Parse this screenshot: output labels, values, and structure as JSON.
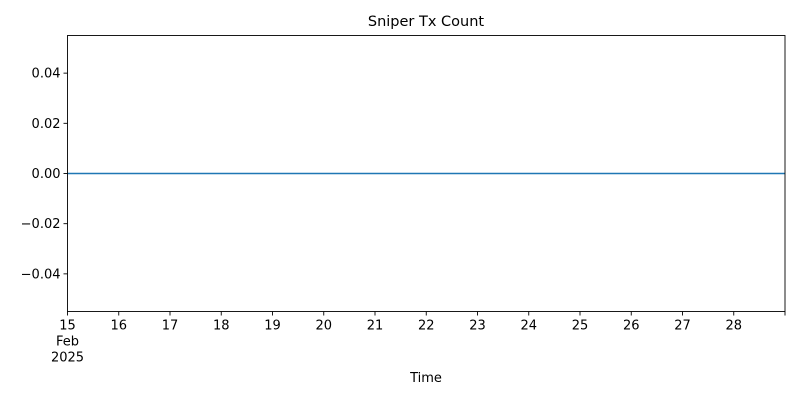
{
  "chart_data": {
    "type": "line",
    "title": "Sniper Tx Count",
    "xlabel": "Time",
    "ylabel": "",
    "x_axis": {
      "scale": "date",
      "range": [
        "2025-02-15",
        "2025-03-01"
      ],
      "major_ticks": [
        {
          "date": "2025-02-15",
          "label": "15",
          "sublabels": [
            "Feb",
            "2025"
          ]
        },
        {
          "date": "2025-02-16",
          "label": "16"
        },
        {
          "date": "2025-02-17",
          "label": "17"
        },
        {
          "date": "2025-02-18",
          "label": "18"
        },
        {
          "date": "2025-02-19",
          "label": "19"
        },
        {
          "date": "2025-02-20",
          "label": "20"
        },
        {
          "date": "2025-02-21",
          "label": "21"
        },
        {
          "date": "2025-02-22",
          "label": "22"
        },
        {
          "date": "2025-02-23",
          "label": "23"
        },
        {
          "date": "2025-02-24",
          "label": "24"
        },
        {
          "date": "2025-02-25",
          "label": "25"
        },
        {
          "date": "2025-02-26",
          "label": "26"
        },
        {
          "date": "2025-02-27",
          "label": "27"
        },
        {
          "date": "2025-02-28",
          "label": "28"
        }
      ],
      "unlabeled_ticks": [
        "2025-03-01"
      ]
    },
    "y_axis": {
      "range": [
        -0.055,
        0.055
      ],
      "ticks": [
        {
          "value": -0.04,
          "label": "−0.04"
        },
        {
          "value": -0.02,
          "label": "−0.02"
        },
        {
          "value": 0.0,
          "label": "0.00"
        },
        {
          "value": 0.02,
          "label": "0.02"
        },
        {
          "value": 0.04,
          "label": "0.04"
        }
      ]
    },
    "grid": false,
    "legend": "none",
    "series": [
      {
        "color": "#1f77b4",
        "x": [
          "2025-02-15",
          "2025-03-01"
        ],
        "values": [
          0,
          0
        ]
      }
    ]
  }
}
